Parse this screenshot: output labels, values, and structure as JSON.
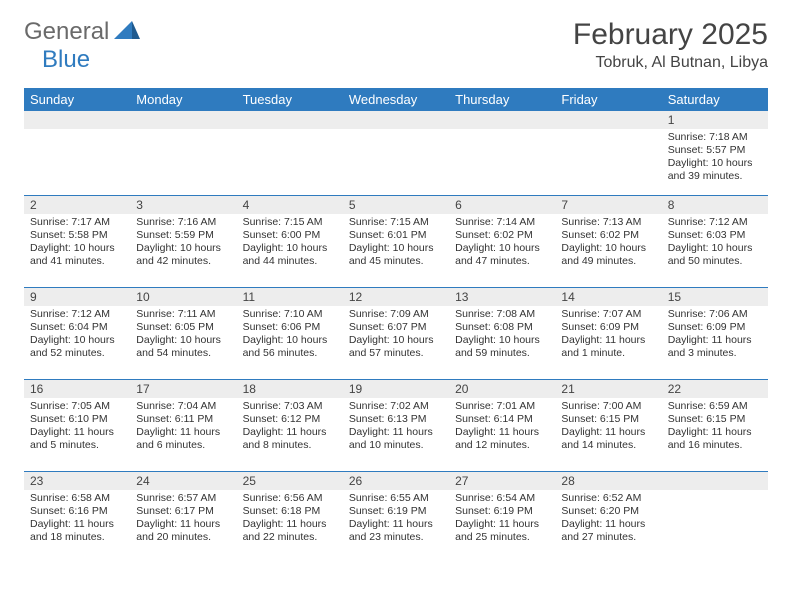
{
  "brand": {
    "text1": "General",
    "text2": "Blue"
  },
  "title": "February 2025",
  "location": "Tobruk, Al Butnan, Libya",
  "colors": {
    "header_bg": "#2f7bbf",
    "header_text": "#ffffff",
    "daynum_bg": "#ededed",
    "border": "#2f7bbf",
    "text": "#333333",
    "brand_gray": "#6a6a6a",
    "brand_blue": "#2f7bbf"
  },
  "weekdays": [
    "Sunday",
    "Monday",
    "Tuesday",
    "Wednesday",
    "Thursday",
    "Friday",
    "Saturday"
  ],
  "weeks": [
    [
      {
        "n": "",
        "sr": "",
        "ss": "",
        "dl": ""
      },
      {
        "n": "",
        "sr": "",
        "ss": "",
        "dl": ""
      },
      {
        "n": "",
        "sr": "",
        "ss": "",
        "dl": ""
      },
      {
        "n": "",
        "sr": "",
        "ss": "",
        "dl": ""
      },
      {
        "n": "",
        "sr": "",
        "ss": "",
        "dl": ""
      },
      {
        "n": "",
        "sr": "",
        "ss": "",
        "dl": ""
      },
      {
        "n": "1",
        "sr": "Sunrise: 7:18 AM",
        "ss": "Sunset: 5:57 PM",
        "dl": "Daylight: 10 hours and 39 minutes."
      }
    ],
    [
      {
        "n": "2",
        "sr": "Sunrise: 7:17 AM",
        "ss": "Sunset: 5:58 PM",
        "dl": "Daylight: 10 hours and 41 minutes."
      },
      {
        "n": "3",
        "sr": "Sunrise: 7:16 AM",
        "ss": "Sunset: 5:59 PM",
        "dl": "Daylight: 10 hours and 42 minutes."
      },
      {
        "n": "4",
        "sr": "Sunrise: 7:15 AM",
        "ss": "Sunset: 6:00 PM",
        "dl": "Daylight: 10 hours and 44 minutes."
      },
      {
        "n": "5",
        "sr": "Sunrise: 7:15 AM",
        "ss": "Sunset: 6:01 PM",
        "dl": "Daylight: 10 hours and 45 minutes."
      },
      {
        "n": "6",
        "sr": "Sunrise: 7:14 AM",
        "ss": "Sunset: 6:02 PM",
        "dl": "Daylight: 10 hours and 47 minutes."
      },
      {
        "n": "7",
        "sr": "Sunrise: 7:13 AM",
        "ss": "Sunset: 6:02 PM",
        "dl": "Daylight: 10 hours and 49 minutes."
      },
      {
        "n": "8",
        "sr": "Sunrise: 7:12 AM",
        "ss": "Sunset: 6:03 PM",
        "dl": "Daylight: 10 hours and 50 minutes."
      }
    ],
    [
      {
        "n": "9",
        "sr": "Sunrise: 7:12 AM",
        "ss": "Sunset: 6:04 PM",
        "dl": "Daylight: 10 hours and 52 minutes."
      },
      {
        "n": "10",
        "sr": "Sunrise: 7:11 AM",
        "ss": "Sunset: 6:05 PM",
        "dl": "Daylight: 10 hours and 54 minutes."
      },
      {
        "n": "11",
        "sr": "Sunrise: 7:10 AM",
        "ss": "Sunset: 6:06 PM",
        "dl": "Daylight: 10 hours and 56 minutes."
      },
      {
        "n": "12",
        "sr": "Sunrise: 7:09 AM",
        "ss": "Sunset: 6:07 PM",
        "dl": "Daylight: 10 hours and 57 minutes."
      },
      {
        "n": "13",
        "sr": "Sunrise: 7:08 AM",
        "ss": "Sunset: 6:08 PM",
        "dl": "Daylight: 10 hours and 59 minutes."
      },
      {
        "n": "14",
        "sr": "Sunrise: 7:07 AM",
        "ss": "Sunset: 6:09 PM",
        "dl": "Daylight: 11 hours and 1 minute."
      },
      {
        "n": "15",
        "sr": "Sunrise: 7:06 AM",
        "ss": "Sunset: 6:09 PM",
        "dl": "Daylight: 11 hours and 3 minutes."
      }
    ],
    [
      {
        "n": "16",
        "sr": "Sunrise: 7:05 AM",
        "ss": "Sunset: 6:10 PM",
        "dl": "Daylight: 11 hours and 5 minutes."
      },
      {
        "n": "17",
        "sr": "Sunrise: 7:04 AM",
        "ss": "Sunset: 6:11 PM",
        "dl": "Daylight: 11 hours and 6 minutes."
      },
      {
        "n": "18",
        "sr": "Sunrise: 7:03 AM",
        "ss": "Sunset: 6:12 PM",
        "dl": "Daylight: 11 hours and 8 minutes."
      },
      {
        "n": "19",
        "sr": "Sunrise: 7:02 AM",
        "ss": "Sunset: 6:13 PM",
        "dl": "Daylight: 11 hours and 10 minutes."
      },
      {
        "n": "20",
        "sr": "Sunrise: 7:01 AM",
        "ss": "Sunset: 6:14 PM",
        "dl": "Daylight: 11 hours and 12 minutes."
      },
      {
        "n": "21",
        "sr": "Sunrise: 7:00 AM",
        "ss": "Sunset: 6:15 PM",
        "dl": "Daylight: 11 hours and 14 minutes."
      },
      {
        "n": "22",
        "sr": "Sunrise: 6:59 AM",
        "ss": "Sunset: 6:15 PM",
        "dl": "Daylight: 11 hours and 16 minutes."
      }
    ],
    [
      {
        "n": "23",
        "sr": "Sunrise: 6:58 AM",
        "ss": "Sunset: 6:16 PM",
        "dl": "Daylight: 11 hours and 18 minutes."
      },
      {
        "n": "24",
        "sr": "Sunrise: 6:57 AM",
        "ss": "Sunset: 6:17 PM",
        "dl": "Daylight: 11 hours and 20 minutes."
      },
      {
        "n": "25",
        "sr": "Sunrise: 6:56 AM",
        "ss": "Sunset: 6:18 PM",
        "dl": "Daylight: 11 hours and 22 minutes."
      },
      {
        "n": "26",
        "sr": "Sunrise: 6:55 AM",
        "ss": "Sunset: 6:19 PM",
        "dl": "Daylight: 11 hours and 23 minutes."
      },
      {
        "n": "27",
        "sr": "Sunrise: 6:54 AM",
        "ss": "Sunset: 6:19 PM",
        "dl": "Daylight: 11 hours and 25 minutes."
      },
      {
        "n": "28",
        "sr": "Sunrise: 6:52 AM",
        "ss": "Sunset: 6:20 PM",
        "dl": "Daylight: 11 hours and 27 minutes."
      },
      {
        "n": "",
        "sr": "",
        "ss": "",
        "dl": ""
      }
    ]
  ]
}
